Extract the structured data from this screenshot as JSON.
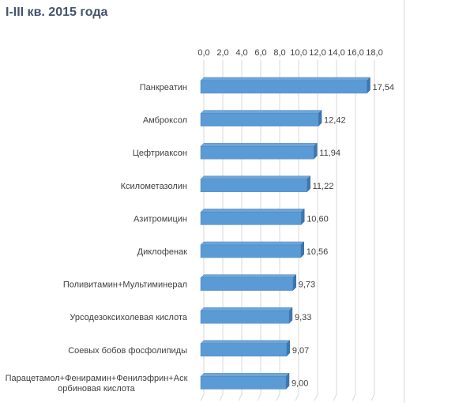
{
  "title": "I-III кв. 2015 года",
  "chart_data": {
    "type": "bar",
    "orientation": "horizontal",
    "three_d": true,
    "bar_color": "#5b9bd5",
    "title": "I-III кв. 2015 года",
    "xlim": [
      0,
      18
    ],
    "ticks": [
      "0,0",
      "2,0",
      "4,0",
      "6,0",
      "8,0",
      "10,0",
      "12,0",
      "14,0",
      "16,0",
      "18,0"
    ],
    "grid": true,
    "categories": [
      [
        "Панкреатин"
      ],
      [
        "Амброксол"
      ],
      [
        "Цефтриаксон"
      ],
      [
        "Ксилометазолин"
      ],
      [
        "Азитромицин"
      ],
      [
        "Диклофенак"
      ],
      [
        "Поливитамин+Мультиминерал"
      ],
      [
        "Урсодезоксихолевая кислота"
      ],
      [
        "Соевых бобов фосфолипиды"
      ],
      [
        "Парацетамол+Фенирамин+Фенилэфрин+Аск",
        "орбиновая кислота"
      ]
    ],
    "values": [
      17.54,
      12.42,
      11.94,
      11.22,
      10.6,
      10.56,
      9.73,
      9.33,
      9.07,
      9.0
    ],
    "value_labels": [
      "17,54",
      "12,42",
      "11,94",
      "11,22",
      "10,60",
      "10,56",
      "9,73",
      "9,33",
      "9,07",
      "9,00"
    ]
  }
}
